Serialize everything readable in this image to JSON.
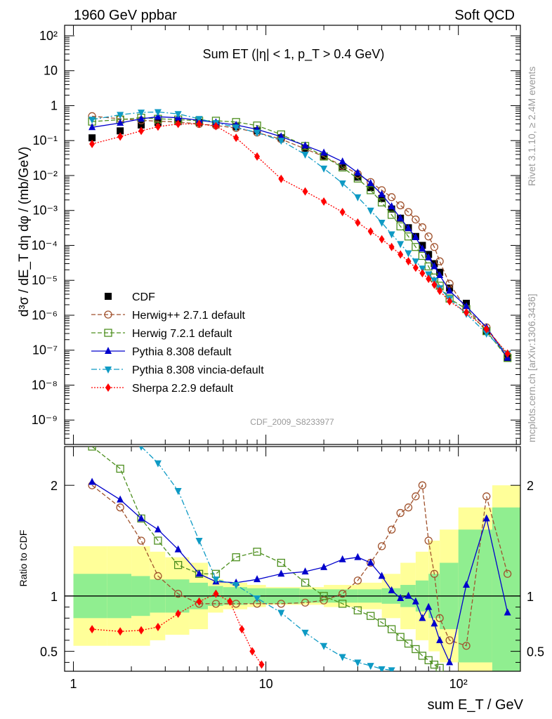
{
  "header": {
    "left": "1960 GeV ppbar",
    "right": "Soft QCD"
  },
  "side_labels": {
    "rivet": "Rivet 3.1.10, ≥ 2.4M events",
    "mcplots": "mcplots.cern.ch [arXiv:1306.3436]"
  },
  "analysis_id": "CDF_2009_S8233977",
  "chart_data": [
    {
      "type": "scatter",
      "panel": "main",
      "title": "Sum ET (|η| < 1, p_T > 0.4 GeV)",
      "ylabel": "d³σ / dE_T dη dφ / (mb/GeV)",
      "xscale": "log",
      "yscale": "log",
      "xlim": [
        0.9,
        210
      ],
      "ylim": [
        2e-10,
        200
      ],
      "xticks": [
        1,
        10,
        100
      ],
      "xtick_labels": [
        "1",
        "10",
        "10²"
      ],
      "yticks": [
        1e-09,
        1e-08,
        1e-07,
        1e-06,
        1e-05,
        0.0001,
        0.001,
        0.01,
        0.1,
        1,
        10,
        100
      ],
      "ytick_labels": [
        "10⁻⁹",
        "10⁻⁸",
        "10⁻⁷",
        "10⁻⁶",
        "10⁻⁵",
        "10⁻⁴",
        "10⁻³",
        "10⁻²",
        "10⁻¹",
        "1",
        "10",
        "10²"
      ],
      "legend_position": "bottom-left",
      "series": [
        {
          "name": "CDF",
          "color": "#000000",
          "marker": "square",
          "x": [
            1.25,
            1.75,
            2.25,
            2.75,
            3.5,
            4.5,
            5.5,
            7,
            9,
            12,
            16,
            20,
            25,
            30,
            35,
            40,
            45,
            50,
            55,
            60,
            65,
            70,
            75,
            80,
            90,
            110,
            140,
            180
          ],
          "y": [
            0.12,
            0.19,
            0.28,
            0.33,
            0.35,
            0.33,
            0.3,
            0.25,
            0.19,
            0.12,
            0.06,
            0.035,
            0.018,
            0.009,
            0.0045,
            0.0022,
            0.0011,
            0.0006,
            0.00032,
            0.00018,
            0.0001,
            5.5e-05,
            3e-05,
            1.7e-05,
            6e-06,
            2.2e-06,
            3.5e-07,
            6e-08
          ]
        },
        {
          "name": "Herwig++ 2.7.1 default",
          "color": "#a0522d",
          "marker": "open-circle",
          "line": "dashed",
          "x": [
            1.25,
            1.75,
            2.25,
            2.75,
            3.5,
            4.5,
            5.5,
            7,
            9,
            12,
            16,
            20,
            25,
            30,
            35,
            40,
            45,
            50,
            55,
            60,
            65,
            70,
            75,
            80,
            90,
            110,
            140,
            180
          ],
          "y": [
            0.5,
            0.42,
            0.38,
            0.36,
            0.34,
            0.3,
            0.27,
            0.23,
            0.17,
            0.11,
            0.058,
            0.035,
            0.019,
            0.011,
            0.0065,
            0.0038,
            0.0024,
            0.0014,
            0.0009,
            0.00055,
            0.00033,
            0.00018,
            9e-05,
            3.5e-05,
            8e-06,
            1.5e-06,
            4.5e-07,
            7e-08
          ]
        },
        {
          "name": "Herwig 7.2.1 default",
          "color": "#4d8f1f",
          "marker": "open-square",
          "line": "dashed",
          "x": [
            1.25,
            1.75,
            2.25,
            2.75,
            3.5,
            4.5,
            5.5,
            7,
            9,
            12,
            16,
            20,
            25,
            30,
            35,
            40,
            45,
            50,
            55,
            60,
            65,
            70,
            75,
            80,
            90,
            110,
            140,
            180
          ],
          "y": [
            0.35,
            0.4,
            0.45,
            0.42,
            0.4,
            0.37,
            0.37,
            0.34,
            0.27,
            0.15,
            0.07,
            0.035,
            0.017,
            0.0082,
            0.0038,
            0.0017,
            0.00075,
            0.00035,
            0.00018,
            9e-05,
            5e-05,
            2.5e-05,
            1.2e-05,
            7e-06,
            3e-06,
            1.5e-06,
            3.5e-07,
            6e-08
          ]
        },
        {
          "name": "Pythia 8.308 default",
          "color": "#0000cc",
          "marker": "triangle-up",
          "line": "solid",
          "x": [
            1.25,
            1.75,
            2.25,
            2.75,
            3.5,
            4.5,
            5.5,
            7,
            9,
            12,
            16,
            20,
            25,
            30,
            35,
            40,
            45,
            50,
            55,
            60,
            65,
            70,
            75,
            80,
            90,
            110,
            140,
            180
          ],
          "y": [
            0.24,
            0.32,
            0.42,
            0.48,
            0.45,
            0.38,
            0.33,
            0.28,
            0.21,
            0.13,
            0.072,
            0.045,
            0.025,
            0.012,
            0.006,
            0.0029,
            0.0013,
            0.0006,
            0.00031,
            0.00017,
            8e-05,
            4.5e-05,
            2.5e-05,
            1.4e-05,
            5e-06,
            1.8e-06,
            4.5e-07,
            6e-08
          ]
        },
        {
          "name": "Pythia 8.308 vincia-default",
          "color": "#0e9ac4",
          "marker": "triangle-down",
          "line": "dashdot",
          "x": [
            1.25,
            1.75,
            2.25,
            2.75,
            3.5,
            4.5,
            5.5,
            7,
            9,
            12,
            16,
            20,
            25,
            30,
            35,
            40,
            45,
            50,
            55,
            60,
            65,
            70,
            75,
            80,
            90,
            110,
            140,
            180
          ],
          "y": [
            0.4,
            0.55,
            0.64,
            0.66,
            0.58,
            0.42,
            0.32,
            0.24,
            0.17,
            0.1,
            0.04,
            0.016,
            0.006,
            0.0024,
            0.001,
            0.00045,
            0.00021,
            0.00011,
            6e-05,
            3.5e-05,
            2.2e-05,
            1.5e-05,
            1e-05,
            6e-06,
            3e-06,
            1.1e-06,
            3e-07,
            8e-08
          ]
        },
        {
          "name": "Sherpa 2.2.9 default",
          "color": "#ff0000",
          "marker": "diamond",
          "line": "dotted",
          "x": [
            1.25,
            1.75,
            2.25,
            2.75,
            3.5,
            4.5,
            5.5,
            7,
            9,
            12,
            16,
            20,
            25,
            30,
            35,
            40,
            45,
            50,
            55,
            60,
            65,
            70,
            75,
            80,
            90,
            110,
            140,
            180
          ],
          "y": [
            0.08,
            0.13,
            0.19,
            0.25,
            0.3,
            0.3,
            0.26,
            0.12,
            0.035,
            0.008,
            0.0035,
            0.0018,
            0.0009,
            0.00045,
            0.00025,
            0.00015,
            9e-05,
            5.5e-05,
            3.5e-05,
            2.3e-05,
            1.6e-05,
            1.1e-05,
            7.5e-06,
            5e-06,
            2.5e-06,
            1.2e-06,
            4e-07,
            8e-08
          ]
        }
      ]
    },
    {
      "type": "line",
      "panel": "ratio",
      "ylabel": "Ratio to CDF",
      "xlabel": "sum E_T / GeV",
      "xscale": "log",
      "xlim": [
        0.9,
        210
      ],
      "ylim": [
        0.32,
        2.35
      ],
      "yticks": [
        0.5,
        1,
        2
      ],
      "ytick_labels": [
        "0.5",
        "1",
        "2"
      ],
      "reference_line": 1,
      "bands": {
        "x_edges": [
          1,
          1.5,
          2,
          2.5,
          3,
          4,
          5,
          6,
          8,
          10,
          15,
          20,
          30,
          40,
          50,
          60,
          70,
          80,
          100,
          150,
          210
        ],
        "inner": [
          0.2,
          0.2,
          0.18,
          0.15,
          0.15,
          0.12,
          0.09,
          0.08,
          0.07,
          0.07,
          0.06,
          0.06,
          0.06,
          0.07,
          0.1,
          0.14,
          0.2,
          0.3,
          0.6,
          0.8
        ],
        "outer": [
          0.45,
          0.45,
          0.45,
          0.4,
          0.35,
          0.3,
          0.15,
          0.12,
          0.1,
          0.08,
          0.08,
          0.1,
          0.12,
          0.2,
          0.3,
          0.4,
          0.5,
          0.6,
          0.8,
          1.0
        ],
        "inner_color": "#90ee90",
        "outer_color": "#ffff99"
      },
      "series": [
        {
          "name": "Herwig++ 2.7.1 default",
          "color": "#a0522d",
          "marker": "open-circle",
          "line": "dashed",
          "x": [
            1.25,
            1.75,
            2.25,
            2.75,
            3.5,
            4.5,
            5.5,
            7,
            9,
            12,
            16,
            20,
            25,
            30,
            35,
            40,
            45,
            50,
            55,
            60,
            65,
            70,
            75,
            80,
            90,
            110,
            140,
            180
          ],
          "y": [
            2.0,
            1.8,
            1.5,
            1.18,
            1.02,
            0.93,
            0.93,
            0.93,
            0.93,
            0.93,
            0.94,
            0.96,
            1.02,
            1.14,
            1.3,
            1.45,
            1.6,
            1.75,
            1.8,
            1.9,
            2.0,
            1.5,
            1.2,
            0.8,
            0.6,
            0.55,
            1.9,
            1.2
          ]
        },
        {
          "name": "Herwig 7.2.1 default",
          "color": "#4d8f1f",
          "marker": "open-square",
          "line": "dashed",
          "x": [
            1.25,
            1.75,
            2.25,
            2.75,
            3.5,
            4.5,
            5.5,
            7,
            9,
            12,
            16,
            20,
            25,
            30,
            35,
            40,
            45,
            50,
            55,
            60,
            65,
            70,
            75,
            80
          ],
          "y": [
            2.35,
            2.15,
            1.7,
            1.5,
            1.28,
            1.2,
            1.2,
            1.35,
            1.4,
            1.3,
            1.12,
            1.0,
            0.93,
            0.87,
            0.82,
            0.76,
            0.7,
            0.63,
            0.57,
            0.52,
            0.46,
            0.42,
            0.38,
            0.35
          ]
        },
        {
          "name": "Pythia 8.308 default",
          "color": "#0000cc",
          "marker": "triangle-up",
          "line": "solid",
          "x": [
            1.25,
            1.75,
            2.25,
            2.75,
            3.5,
            4.5,
            5.5,
            7,
            9,
            12,
            16,
            20,
            25,
            30,
            35,
            40,
            45,
            50,
            55,
            60,
            65,
            70,
            75,
            80,
            90,
            110,
            140,
            180
          ],
          "y": [
            2.03,
            1.87,
            1.7,
            1.6,
            1.42,
            1.2,
            1.13,
            1.12,
            1.15,
            1.2,
            1.22,
            1.26,
            1.33,
            1.35,
            1.3,
            1.18,
            1.05,
            0.98,
            1.0,
            0.95,
            0.8,
            0.9,
            0.75,
            0.6,
            0.4,
            1.1,
            1.7,
            0.85
          ]
        },
        {
          "name": "Pythia 8.308 vincia-default",
          "color": "#0e9ac4",
          "marker": "triangle-down",
          "line": "dashdot",
          "x": [
            2.25,
            2.75,
            3.5,
            4.5,
            5.5,
            7,
            9,
            12,
            16,
            20,
            25,
            30,
            35,
            40,
            45
          ],
          "y": [
            2.35,
            2.2,
            1.95,
            1.5,
            1.15,
            1.1,
            0.98,
            0.85,
            0.67,
            0.55,
            0.45,
            0.4,
            0.37,
            0.34,
            0.33
          ]
        },
        {
          "name": "Sherpa 2.2.9 default",
          "color": "#ff0000",
          "marker": "diamond",
          "line": "dotted",
          "x": [
            1.25,
            1.75,
            2.25,
            2.75,
            3.5,
            4.5,
            5.5,
            6.5,
            7.5,
            8.5,
            9.5
          ],
          "y": [
            0.7,
            0.68,
            0.69,
            0.72,
            0.84,
            0.95,
            1.02,
            0.95,
            0.7,
            0.5,
            0.38
          ]
        }
      ]
    }
  ]
}
